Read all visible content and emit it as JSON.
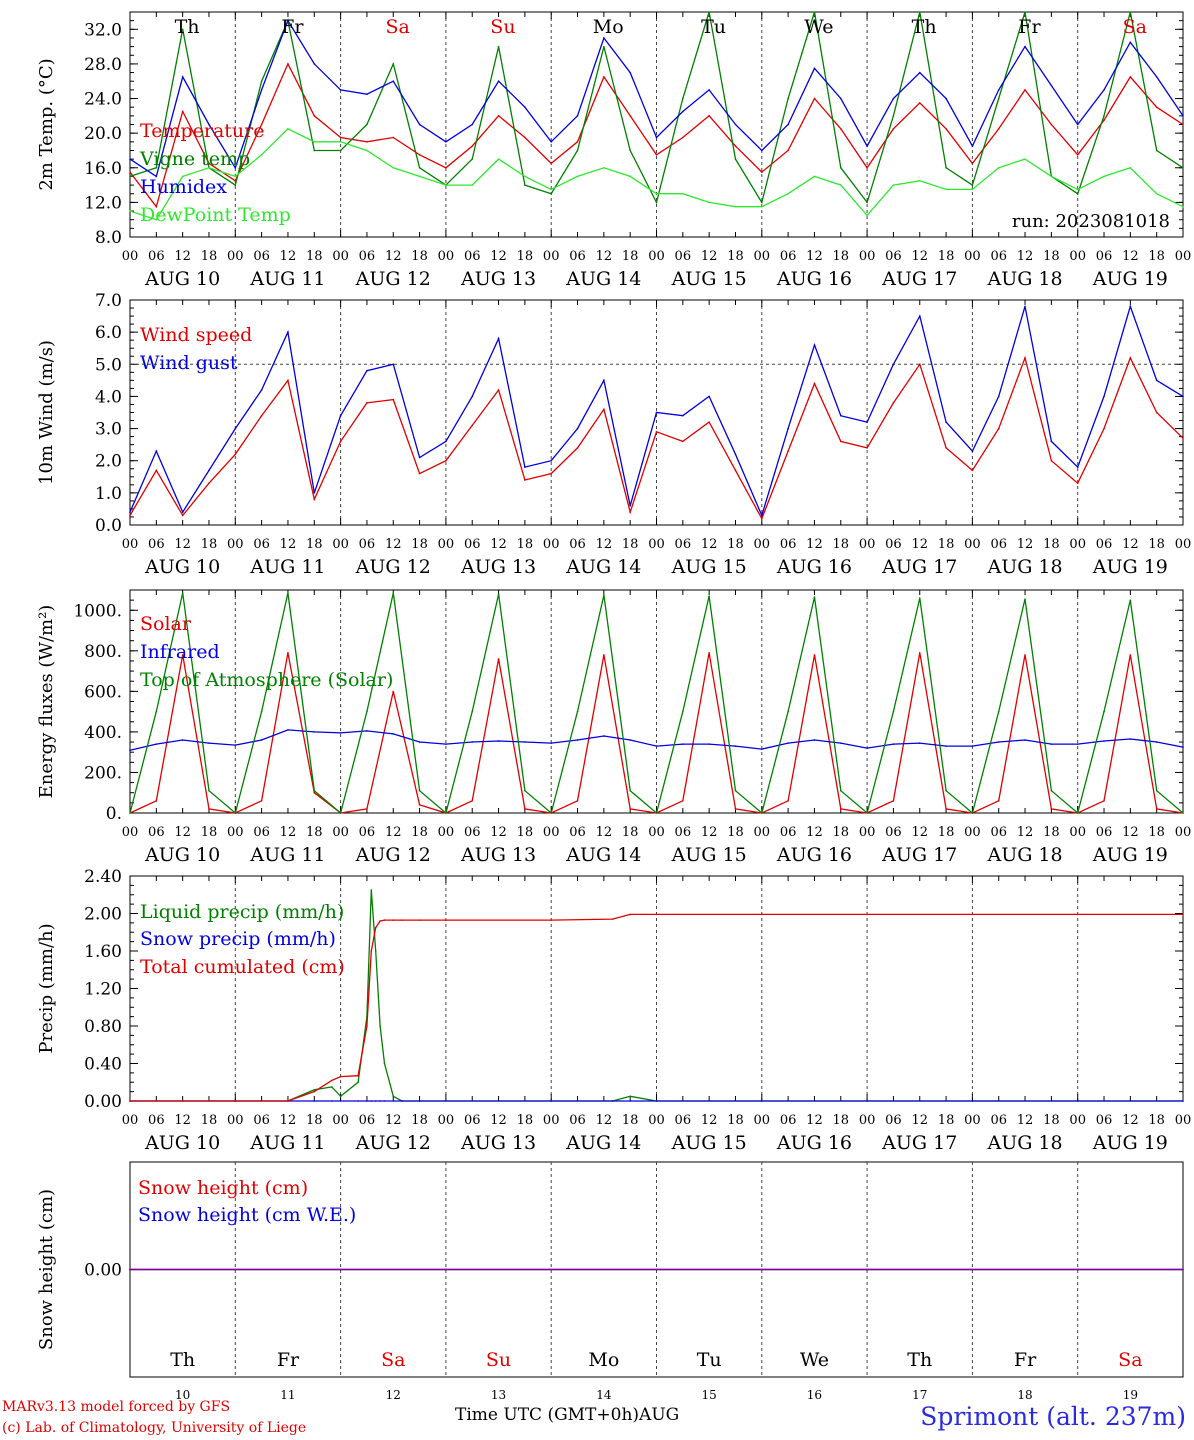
{
  "run_label": "run: 2023081018",
  "hour_ticks": [
    "00",
    "06",
    "12",
    "18"
  ],
  "final_tick": "00",
  "days": [
    {
      "date": "AUG 10",
      "num": "10",
      "dow": "Th",
      "weekend": false
    },
    {
      "date": "AUG 11",
      "num": "11",
      "dow": "Fr",
      "weekend": false
    },
    {
      "date": "AUG 12",
      "num": "12",
      "dow": "Sa",
      "weekend": true
    },
    {
      "date": "AUG 13",
      "num": "13",
      "dow": "Su",
      "weekend": true
    },
    {
      "date": "AUG 14",
      "num": "14",
      "dow": "Mo",
      "weekend": false
    },
    {
      "date": "AUG 15",
      "num": "15",
      "dow": "Tu",
      "weekend": false
    },
    {
      "date": "AUG 16",
      "num": "16",
      "dow": "We",
      "weekend": false
    },
    {
      "date": "AUG 17",
      "num": "17",
      "dow": "Th",
      "weekend": false
    },
    {
      "date": "AUG 18",
      "num": "18",
      "dow": "Fr",
      "weekend": false
    },
    {
      "date": "AUG 19",
      "num": "19",
      "dow": "Sa",
      "weekend": true
    }
  ],
  "colors": {
    "red": "#e00000",
    "green": "#008000",
    "blue": "#0000e0",
    "lime": "#2ee82e",
    "purple": "#8000a0",
    "weekend": "#e00000",
    "station": "#2a2ae0"
  },
  "chart_data": [
    {
      "type": "line",
      "ylabel": "2m Temp. (°C)",
      "ylim": [
        8,
        34
      ],
      "yticks": [
        "8.0",
        "12.0",
        "16.0",
        "20.0",
        "24.0",
        "28.0",
        "32.0"
      ],
      "legend": [
        "Temperature",
        "Vigne temp",
        "Humidex",
        "DewPoint Temp"
      ],
      "x_unit": "hours from AUG 10 00 UTC",
      "x": [
        0,
        6,
        12,
        18,
        24,
        30,
        36,
        42,
        48,
        54,
        60,
        66,
        72,
        78,
        84,
        90,
        96,
        102,
        108,
        114,
        120,
        126,
        132,
        138,
        144,
        150,
        156,
        162,
        168,
        174,
        180,
        186,
        192,
        198,
        204,
        210,
        216,
        222,
        228,
        234,
        240
      ],
      "series": [
        {
          "name": "Temperature",
          "color": "red",
          "values": [
            15.5,
            11.5,
            22.5,
            16.5,
            14.5,
            21,
            28,
            22,
            19.5,
            19,
            19.5,
            17.5,
            16,
            18.5,
            22,
            19.5,
            16.5,
            19,
            26.5,
            22,
            17.5,
            19.5,
            22,
            18.5,
            15.5,
            18,
            24,
            20.5,
            16,
            20.5,
            23.5,
            20.5,
            16.5,
            20.5,
            25,
            21,
            17.5,
            21.5,
            26.5,
            23,
            21
          ]
        },
        {
          "name": "Vigne temp",
          "color": "green",
          "values": [
            15,
            16,
            32,
            16,
            14,
            26,
            33,
            18,
            18,
            21,
            28,
            16,
            14,
            17,
            30,
            14,
            13,
            18,
            30,
            18,
            12,
            24,
            34,
            17,
            12,
            24,
            34,
            16,
            12,
            22,
            34,
            16,
            14,
            24,
            34,
            15,
            13,
            22,
            34,
            18,
            16
          ]
        },
        {
          "name": "Humidex",
          "color": "blue",
          "values": [
            17,
            15,
            26.5,
            21,
            16,
            25,
            33,
            28,
            25,
            24.5,
            26,
            21,
            19,
            21,
            26,
            23,
            19,
            22,
            31,
            27,
            19.5,
            22.5,
            25,
            21,
            18,
            21,
            27.5,
            24,
            18.5,
            24,
            27,
            24,
            18.5,
            25,
            30,
            25.5,
            21,
            25,
            30.5,
            26.5,
            22
          ]
        },
        {
          "name": "DewPoint Temp",
          "color": "lime",
          "values": [
            11,
            10,
            15,
            16,
            15,
            17.5,
            20.5,
            19,
            19,
            18,
            16,
            15,
            14,
            14,
            17,
            15,
            13.5,
            15,
            16,
            15,
            13,
            13,
            12,
            11.5,
            11.5,
            13,
            15,
            14,
            10.5,
            14,
            14.5,
            13.5,
            13.5,
            16,
            17,
            15,
            13.5,
            15,
            16,
            13,
            11.5
          ]
        }
      ]
    },
    {
      "type": "line",
      "ylabel": "10m Wind (m/s)",
      "ylim": [
        0,
        7
      ],
      "yticks": [
        "0.0",
        "1.0",
        "2.0",
        "3.0",
        "4.0",
        "5.0",
        "6.0",
        "7.0"
      ],
      "ref_line": 5,
      "legend": [
        "Wind speed",
        "Wind gust"
      ],
      "x": [
        0,
        6,
        12,
        18,
        24,
        30,
        36,
        42,
        48,
        54,
        60,
        66,
        72,
        78,
        84,
        90,
        96,
        102,
        108,
        114,
        120,
        126,
        132,
        138,
        144,
        150,
        156,
        162,
        168,
        174,
        180,
        186,
        192,
        198,
        204,
        210,
        216,
        222,
        228,
        234,
        240
      ],
      "series": [
        {
          "name": "Wind speed",
          "color": "red",
          "values": [
            0.3,
            1.7,
            0.3,
            1.3,
            2.2,
            3.4,
            4.5,
            0.8,
            2.6,
            3.8,
            3.9,
            1.6,
            2.0,
            3.1,
            4.2,
            1.4,
            1.6,
            2.4,
            3.6,
            0.4,
            2.9,
            2.6,
            3.2,
            1.7,
            0.2,
            2.3,
            4.4,
            2.6,
            2.4,
            3.8,
            5.0,
            2.4,
            1.7,
            3.0,
            5.2,
            2.0,
            1.3,
            3.0,
            5.2,
            3.5,
            2.7
          ]
        },
        {
          "name": "Wind gust",
          "color": "blue",
          "values": [
            0.4,
            2.3,
            0.4,
            1.7,
            3.0,
            4.2,
            6.0,
            1.0,
            3.4,
            4.8,
            5.0,
            2.1,
            2.6,
            4.0,
            5.8,
            1.8,
            2.0,
            3.0,
            4.5,
            0.6,
            3.5,
            3.4,
            4.0,
            2.2,
            0.3,
            3.0,
            5.6,
            3.4,
            3.2,
            5.0,
            6.5,
            3.2,
            2.3,
            4.0,
            6.8,
            2.6,
            1.8,
            4.0,
            6.8,
            4.5,
            4.0
          ]
        }
      ]
    },
    {
      "type": "line",
      "ylabel": "Energy fluxes (W/m²)",
      "ylim": [
        0,
        1100
      ],
      "yticks": [
        "0.",
        "200.",
        "400.",
        "600.",
        "800.",
        "1000."
      ],
      "legend": [
        "Solar",
        "Infrared",
        "Top of Atmosphere (Solar)"
      ],
      "x": [
        0,
        6,
        12,
        18,
        24,
        30,
        36,
        42,
        48,
        54,
        60,
        66,
        72,
        78,
        84,
        90,
        96,
        102,
        108,
        114,
        120,
        126,
        132,
        138,
        144,
        150,
        156,
        162,
        168,
        174,
        180,
        186,
        192,
        198,
        204,
        210,
        216,
        222,
        228,
        234,
        240
      ],
      "series": [
        {
          "name": "Solar",
          "color": "red",
          "values": [
            0,
            60,
            780,
            20,
            0,
            60,
            790,
            100,
            0,
            20,
            600,
            40,
            0,
            60,
            760,
            20,
            0,
            60,
            780,
            20,
            0,
            60,
            790,
            20,
            0,
            60,
            780,
            20,
            0,
            60,
            790,
            20,
            0,
            60,
            780,
            20,
            0,
            60,
            780,
            20,
            0
          ]
        },
        {
          "name": "Infrared",
          "color": "blue",
          "values": [
            310,
            340,
            360,
            345,
            335,
            360,
            410,
            400,
            395,
            405,
            390,
            350,
            340,
            350,
            355,
            350,
            345,
            360,
            380,
            360,
            330,
            340,
            340,
            330,
            315,
            345,
            360,
            345,
            320,
            340,
            345,
            330,
            330,
            350,
            360,
            340,
            340,
            355,
            365,
            350,
            325
          ]
        },
        {
          "name": "Top of Atmosphere (Solar)",
          "color": "green",
          "values": [
            0,
            500,
            1085,
            110,
            0,
            500,
            1085,
            110,
            0,
            500,
            1085,
            110,
            0,
            500,
            1080,
            110,
            0,
            500,
            1075,
            110,
            0,
            500,
            1070,
            110,
            0,
            500,
            1065,
            110,
            0,
            500,
            1060,
            110,
            0,
            500,
            1055,
            110,
            0,
            500,
            1050,
            110,
            0
          ]
        }
      ]
    },
    {
      "type": "line",
      "ylabel": "Precip (mm/h)",
      "ylim": [
        0,
        2.4
      ],
      "yticks": [
        "0.00",
        "0.40",
        "0.80",
        "1.20",
        "1.60",
        "2.00",
        "2.40"
      ],
      "legend": [
        "Liquid precip (mm/h)",
        "Snow precip (mm/h)",
        "Total cumulated (cm)"
      ],
      "x": [
        0,
        24,
        36,
        42,
        46,
        48,
        52,
        54,
        55,
        56,
        57,
        58,
        60,
        62,
        66,
        96,
        110,
        114,
        120,
        144,
        168,
        192,
        216,
        240
      ],
      "series": [
        {
          "name": "Liquid precip (mm/h)",
          "color": "green",
          "values": [
            0,
            0,
            0,
            0.12,
            0.15,
            0.05,
            0.2,
            0.9,
            2.25,
            1.6,
            0.8,
            0.4,
            0.05,
            0,
            0,
            0,
            0,
            0.05,
            0,
            0,
            0,
            0,
            0,
            0
          ]
        },
        {
          "name": "Snow precip (mm/h)",
          "color": "blue",
          "values": [
            0,
            0,
            0,
            0,
            0,
            0,
            0,
            0,
            0,
            0,
            0,
            0,
            0,
            0,
            0,
            0,
            0,
            0,
            0,
            0,
            0,
            0,
            0,
            0
          ]
        },
        {
          "name": "Total cumulated (cm)",
          "color": "red",
          "values": [
            0,
            0,
            0,
            0.1,
            0.22,
            0.26,
            0.27,
            0.8,
            1.6,
            1.85,
            1.92,
            1.93,
            1.93,
            1.93,
            1.93,
            1.93,
            1.94,
            1.99,
            1.99,
            1.99,
            1.99,
            1.99,
            1.99,
            1.99
          ]
        }
      ]
    },
    {
      "type": "line",
      "ylabel": "Snow height (cm)",
      "ylim": [
        -1,
        1
      ],
      "yticks": [
        "0.00"
      ],
      "legend": [
        "Snow height (cm)",
        "Snow height (cm W.E.)"
      ],
      "x": [
        0,
        240
      ],
      "series": [
        {
          "name": "Snow height (cm)",
          "color": "red",
          "values": [
            0,
            0
          ]
        },
        {
          "name": "Snow height (cm W.E.)",
          "color": "blue",
          "values": [
            0,
            0
          ]
        }
      ]
    }
  ],
  "x_title": "Time UTC (GMT+0h)",
  "month_label": "AUG",
  "credits": [
    "MARv3.13 model forced by GFS",
    "(c) Lab. of Climatology, University of Liege"
  ],
  "station": "Sprimont (alt. 237m)"
}
